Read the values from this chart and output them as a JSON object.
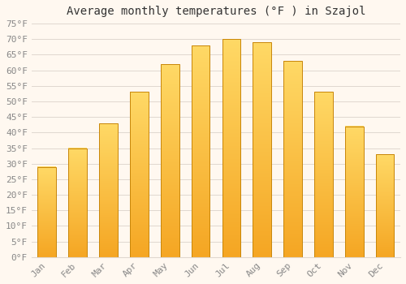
{
  "title": "Average monthly temperatures (°F ) in Szajol",
  "months": [
    "Jan",
    "Feb",
    "Mar",
    "Apr",
    "May",
    "Jun",
    "Jul",
    "Aug",
    "Sep",
    "Oct",
    "Nov",
    "Dec"
  ],
  "values": [
    29,
    35,
    43,
    53,
    62,
    68,
    70,
    69,
    63,
    53,
    42,
    33
  ],
  "bar_color_bottom": "#F5A623",
  "bar_color_top": "#FFD966",
  "bar_edge_color": "#C8860A",
  "background_color": "#FFF8F0",
  "grid_color": "#E0D8D0",
  "ylim": [
    0,
    75
  ],
  "yticks": [
    0,
    5,
    10,
    15,
    20,
    25,
    30,
    35,
    40,
    45,
    50,
    55,
    60,
    65,
    70,
    75
  ],
  "title_fontsize": 10,
  "tick_fontsize": 8,
  "tick_color": "#888888",
  "title_color": "#333333",
  "font_family": "monospace",
  "bar_width": 0.6
}
